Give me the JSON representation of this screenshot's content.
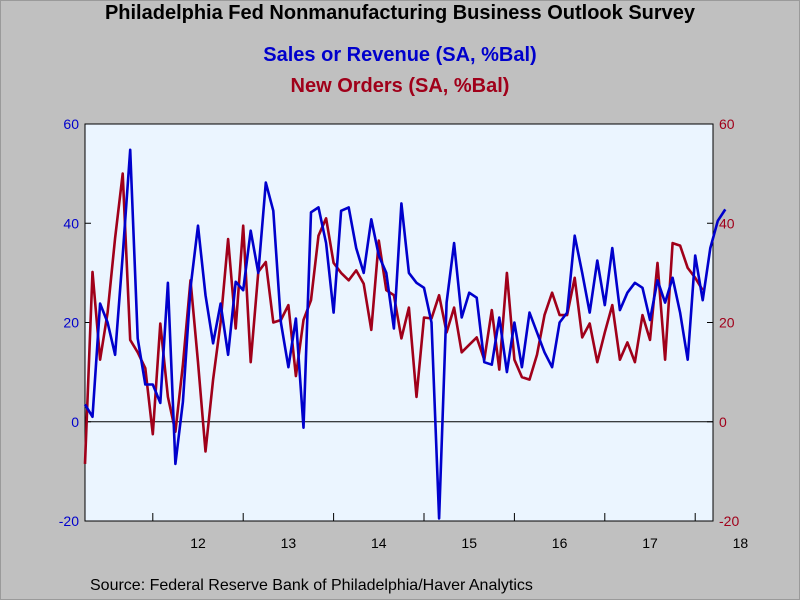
{
  "title": "Philadelphia Fed Nonmanufacturing Business Outlook Survey",
  "subtitle_1": "Sales or Revenue (SA, %Bal)",
  "subtitle_2": "New Orders (SA, %Bal)",
  "source": "Source:  Federal Reserve Bank of Philadelphia/Haver Analytics",
  "colors": {
    "sales": "#0000cc",
    "orders": "#a0001a",
    "plot_bg": "#ebf5ff",
    "page_bg": "#c0c0c0"
  },
  "chart_data": {
    "type": "line",
    "start": "2011-04",
    "frequency": "monthly",
    "ylim": [
      -20,
      60
    ],
    "yticks": [
      -20,
      0,
      20,
      40,
      60
    ],
    "ytick_labels": [
      "-20",
      "0",
      "20",
      "40",
      "60"
    ],
    "x_tick_labels": [
      "12",
      "13",
      "14",
      "15",
      "16",
      "17",
      "18"
    ],
    "series": [
      {
        "name": "Sales or Revenue (SA, %Bal)",
        "axis": "left",
        "values": [
          3.5,
          1.0,
          23.8,
          20.0,
          13.5,
          33.5,
          54.8,
          16.8,
          7.5,
          7.5,
          3.8,
          28.0,
          -8.5,
          4.0,
          27.0,
          39.5,
          25.5,
          15.8,
          23.8,
          13.5,
          28.2,
          26.5,
          38.5,
          30.0,
          48.2,
          42.5,
          20.0,
          11.0,
          20.8,
          -1.2,
          42.2,
          43.2,
          36.0,
          22.0,
          42.5,
          43.2,
          35.0,
          30.0,
          40.8,
          33.5,
          30.0,
          18.8,
          44.0,
          30.0,
          28.0,
          27.0,
          20.0,
          -19.5,
          24.0,
          36.0,
          21.0,
          26.0,
          25.0,
          12.0,
          11.5,
          21.0,
          10.0,
          20.0,
          11.0,
          22.0,
          18.0,
          14.0,
          11.0,
          20.0,
          22.0,
          37.5,
          30.0,
          22.0,
          32.5,
          23.5,
          35.0,
          22.5,
          26.0,
          28.0,
          27.0,
          20.5,
          28.5,
          24.0,
          29.0,
          22.0,
          12.5,
          33.5,
          24.5,
          35.0,
          40.5,
          42.8
        ]
      },
      {
        "name": "New Orders (SA, %Bal)",
        "axis": "right",
        "values": [
          -8.5,
          30.2,
          12.5,
          22.0,
          37.0,
          50.0,
          16.5,
          14.0,
          10.8,
          -2.5,
          19.8,
          5.0,
          -2.0,
          11.5,
          28.5,
          12.0,
          -6.0,
          8.5,
          20.0,
          36.8,
          18.8,
          39.5,
          12.0,
          30.2,
          32.2,
          20.0,
          20.5,
          23.5,
          9.2,
          20.5,
          24.5,
          37.5,
          41.0,
          32.0,
          30.0,
          28.5,
          30.5,
          27.8,
          18.5,
          36.5,
          26.5,
          25.5,
          16.8,
          23.0,
          5.0,
          21.0,
          20.8,
          25.5,
          18.0,
          23.0,
          14.0,
          15.5,
          17.0,
          12.5,
          22.5,
          10.5,
          30.0,
          12.5,
          9.0,
          8.5,
          13.5,
          21.5,
          26.0,
          21.5,
          21.5,
          29.0,
          17.0,
          19.8,
          12.0,
          18.0,
          23.5,
          12.5,
          16.0,
          12.0,
          21.5,
          16.5,
          32.0,
          12.5,
          36.0,
          35.5,
          31.0,
          29.0,
          26.5
        ]
      }
    ]
  }
}
